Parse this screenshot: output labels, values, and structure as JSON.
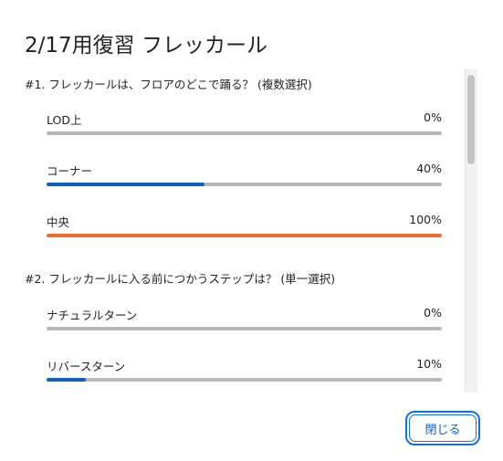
{
  "dialog": {
    "title": "2/17用復習 フレッカール",
    "close_label": "閉じる"
  },
  "colors": {
    "track": "#b7b7be",
    "blue_fill": "#0e5fc4",
    "orange_fill": "#ec6d2d",
    "button_border": "#0e71eb"
  },
  "questions": [
    {
      "title": "#1. フレッカールは、フロアのどこで踊る？ (複数選択)",
      "options": [
        {
          "label": "LOD上",
          "percent": "0%",
          "value": 0,
          "color": "#0e5fc4"
        },
        {
          "label": "コーナー",
          "percent": "40%",
          "value": 40,
          "color": "#0e5fc4"
        },
        {
          "label": "中央",
          "percent": "100%",
          "value": 100,
          "color": "#ec6d2d"
        }
      ]
    },
    {
      "title": "#2. フレッカールに入る前につかうステップは？ (単一選択)",
      "options": [
        {
          "label": "ナチュラルターン",
          "percent": "0%",
          "value": 0,
          "color": "#0e5fc4"
        },
        {
          "label": "リバースターン",
          "percent": "10%",
          "value": 10,
          "color": "#0e5fc4"
        }
      ]
    }
  ]
}
